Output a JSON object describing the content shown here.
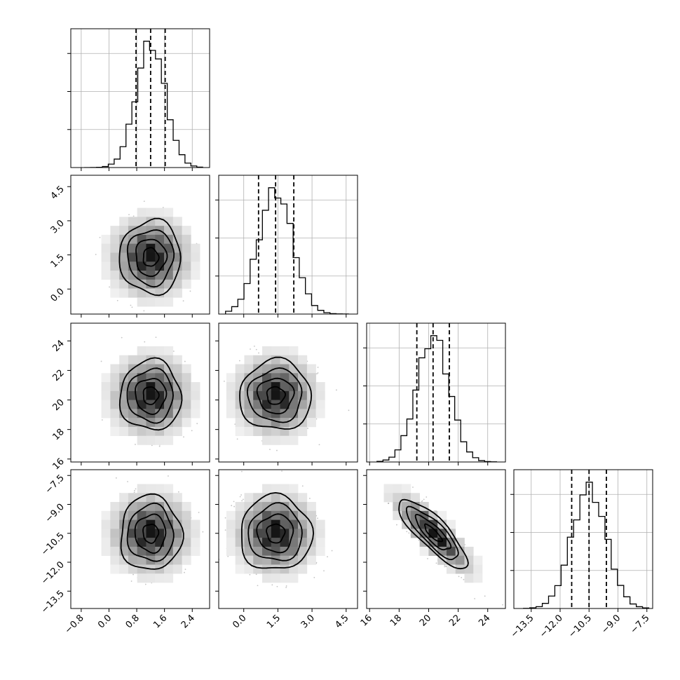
{
  "chart_data": {
    "type": "corner",
    "grid": true,
    "parameters": [
      {
        "mean": 1.2,
        "std": 0.42,
        "range": [
          -1.1,
          2.9
        ],
        "hist_range": [
          -0.7,
          2.7
        ],
        "quantiles": [
          0.78,
          1.2,
          1.62
        ],
        "ticks": [
          "−0.8",
          "0.0",
          "0.8",
          "1.6",
          "2.4"
        ],
        "tick_values": [
          -0.8,
          0.0,
          0.8,
          1.6,
          2.4
        ]
      },
      {
        "mean": 1.4,
        "std": 0.75,
        "range": [
          -1.1,
          5.0
        ],
        "hist_range": [
          -0.8,
          4.6
        ],
        "quantiles": [
          0.65,
          1.4,
          2.2
        ],
        "ticks": [
          "0.0",
          "1.5",
          "3.0",
          "4.5"
        ],
        "tick_values": [
          0.0,
          1.5,
          3.0,
          4.5
        ]
      },
      {
        "mean": 20.3,
        "std": 1.1,
        "range": [
          15.8,
          25.2
        ],
        "hist_range": [
          16.5,
          24.6
        ],
        "quantiles": [
          19.2,
          20.3,
          21.4
        ],
        "ticks": [
          "16",
          "18",
          "20",
          "22",
          "24"
        ],
        "tick_values": [
          16,
          18,
          20,
          22,
          24
        ]
      },
      {
        "mean": -10.5,
        "std": 0.9,
        "range": [
          -14.4,
          -7.2
        ],
        "hist_range": [
          -13.9,
          -7.4
        ],
        "quantiles": [
          -11.4,
          -10.5,
          -9.6
        ],
        "ticks": [
          "−13.5",
          "−12.0",
          "−10.5",
          "−9.0",
          "−7.5"
        ],
        "tick_values": [
          -13.5,
          -12.0,
          -10.5,
          -9.0,
          -7.5
        ]
      }
    ],
    "correlations": [
      {
        "i": 2,
        "j": 3,
        "rho": -0.85
      }
    ],
    "hist_y_gridlines": 3,
    "contour_levels": [
      0.5,
      1.0,
      1.5,
      2.0
    ],
    "scatter_points_per_panel": 1600
  }
}
